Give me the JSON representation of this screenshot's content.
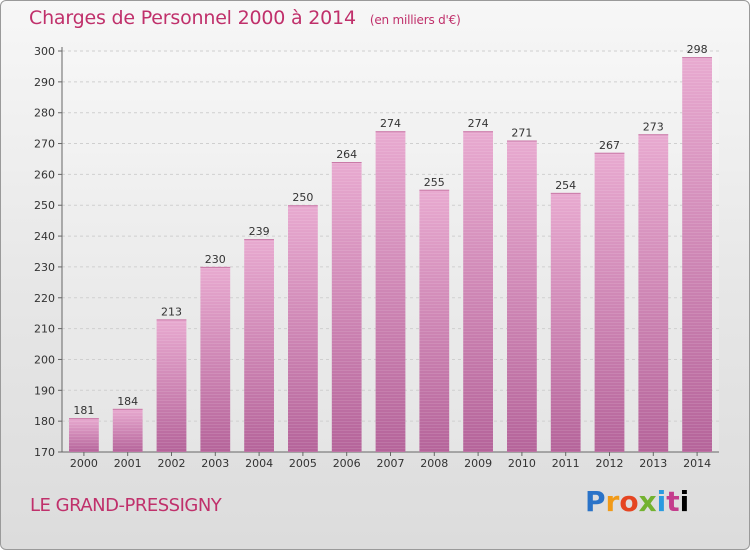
{
  "chart_data": {
    "type": "bar",
    "title": "Charges de Personnel 2000 à 2014",
    "subtitle": "(en milliers d'€)",
    "location": "LE GRAND-PRESSIGNY",
    "categories": [
      "2000",
      "2001",
      "2002",
      "2003",
      "2004",
      "2005",
      "2006",
      "2007",
      "2008",
      "2009",
      "2010",
      "2011",
      "2012",
      "2013",
      "2014"
    ],
    "values": [
      181,
      184,
      213,
      230,
      239,
      250,
      264,
      274,
      255,
      274,
      271,
      254,
      267,
      273,
      298
    ],
    "ylim": [
      170,
      300
    ],
    "yticks": [
      170,
      180,
      190,
      200,
      210,
      220,
      230,
      240,
      250,
      260,
      270,
      280,
      290,
      300
    ],
    "xlabel": "",
    "ylabel": "",
    "grid": true,
    "bar_color": "#d67fae"
  },
  "branding": {
    "logo_letters": [
      "P",
      "r",
      "o",
      "x",
      "i",
      "t",
      "i"
    ]
  }
}
